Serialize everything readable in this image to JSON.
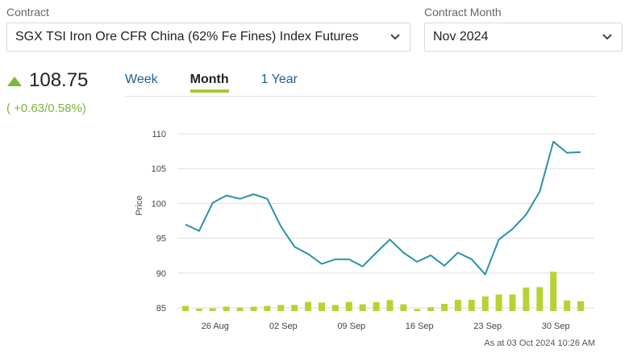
{
  "contract": {
    "label": "Contract",
    "value": "SGX TSI Iron Ore CFR China (62% Fe Fines) Index Futures",
    "icon": "chevron-down-icon"
  },
  "contract_month": {
    "label": "Contract Month",
    "value": "Nov 2024",
    "icon": "chevron-down-icon"
  },
  "quote": {
    "price": "108.75",
    "change": "( +0.63/0.58%)",
    "direction_icon": "triangle-up-icon",
    "color": "#7ab83a"
  },
  "tabs": [
    {
      "label": "Week",
      "active": false
    },
    {
      "label": "Month",
      "active": true
    },
    {
      "label": "1 Year",
      "active": false
    }
  ],
  "colors": {
    "line": "#2a93a7",
    "bars": "#b5d334",
    "accent": "#a8c83c",
    "link": "#1f5f8b"
  },
  "timestamp": "As at 03 Oct 2024 10:26 AM",
  "chart_data": {
    "type": "line",
    "ylabel": "Price",
    "yticks": [
      "110",
      "105",
      "100",
      "95",
      "90",
      "85"
    ],
    "ylim": [
      84.5,
      111
    ],
    "xticks": [
      "26 Aug",
      "02 Sep",
      "09 Sep",
      "16 Sep",
      "23 Sep",
      "30 Sep"
    ],
    "grid": true,
    "series": [
      {
        "values": [
          97.2,
          96.2,
          100.5,
          101.6,
          101.1,
          101.8,
          101.1,
          96.9,
          93.8,
          92.7,
          91.2,
          91.9,
          91.9,
          90.8,
          92.9,
          94.9,
          92.9,
          91.5,
          92.5,
          90.9,
          92.9,
          91.9,
          89.6,
          94.9,
          96.5,
          98.7,
          102.2,
          109.8,
          108.1,
          108.2
        ]
      }
    ],
    "volume_bars": [
      0.32,
      0.15,
      0.17,
      0.28,
      0.22,
      0.27,
      0.32,
      0.38,
      0.38,
      0.57,
      0.53,
      0.38,
      0.57,
      0.42,
      0.55,
      0.68,
      0.42,
      0.13,
      0.24,
      0.45,
      0.7,
      0.7,
      0.91,
      1.03,
      1.03,
      1.46,
      1.48,
      2.44,
      0.66,
      0.61
    ]
  }
}
